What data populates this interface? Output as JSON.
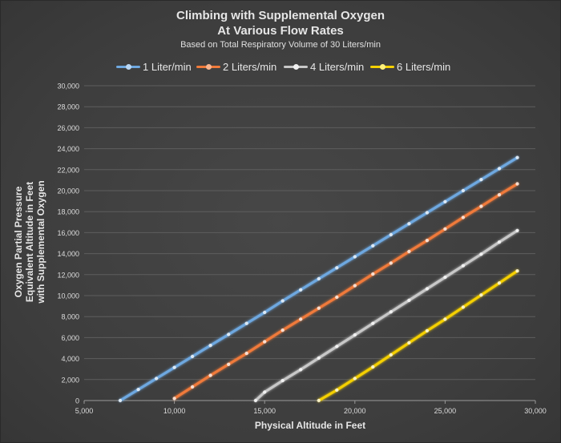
{
  "chart_data": {
    "type": "line",
    "title": "Climbing with Supplemental Oxygen",
    "title_line2": "At Various Flow Rates",
    "subtitle": "Based on Total Respiratory Volume of 30 Liters/min",
    "xlabel": "Physical Altitude in Feet",
    "ylabel_lines": [
      "Oxygen Partial Pressure",
      "Equivalent Altitude  in Feet",
      "with Supplemental Oxygen"
    ],
    "xlim": [
      5000,
      30000
    ],
    "ylim": [
      0,
      30000
    ],
    "x_ticks": [
      5000,
      10000,
      15000,
      20000,
      25000,
      30000
    ],
    "x_tick_labels": [
      "5,000",
      "10,000",
      "15,000",
      "20,000",
      "25,000",
      "30,000"
    ],
    "y_ticks": [
      0,
      2000,
      4000,
      6000,
      8000,
      10000,
      12000,
      14000,
      16000,
      18000,
      20000,
      22000,
      24000,
      26000,
      28000,
      30000
    ],
    "y_tick_labels": [
      "0",
      "2,000",
      "4,000",
      "6,000",
      "8,000",
      "10,000",
      "12,000",
      "14,000",
      "16,000",
      "18,000",
      "20,000",
      "22,000",
      "24,000",
      "26,000",
      "28,000",
      "30,000"
    ],
    "grid": "horizontal",
    "legend_position": "top",
    "series": [
      {
        "name": "1 Liter/min",
        "color": "#6ea8e0",
        "x": [
          7000,
          8000,
          9000,
          10000,
          11000,
          12000,
          13000,
          14000,
          15000,
          16000,
          17000,
          18000,
          19000,
          20000,
          21000,
          22000,
          23000,
          24000,
          25000,
          26000,
          27000,
          28000,
          29000
        ],
        "y": [
          0,
          1050,
          2100,
          3150,
          4200,
          5250,
          6300,
          7350,
          8400,
          9500,
          10550,
          11600,
          12650,
          13700,
          14750,
          15800,
          16850,
          17900,
          18950,
          20000,
          21050,
          22100,
          23150
        ]
      },
      {
        "name": "2 Liters/min",
        "color": "#f07a3a",
        "x": [
          10000,
          11000,
          12000,
          13000,
          14000,
          15000,
          16000,
          17000,
          18000,
          19000,
          20000,
          21000,
          22000,
          23000,
          24000,
          25000,
          26000,
          27000,
          28000,
          29000
        ],
        "y": [
          200,
          1300,
          2400,
          3450,
          4500,
          5600,
          6700,
          7750,
          8800,
          9850,
          10950,
          12050,
          13100,
          14200,
          15250,
          16350,
          17450,
          18500,
          19600,
          20650
        ]
      },
      {
        "name": "4 Liters/min",
        "color": "#c8c8c8",
        "x": [
          14500,
          15000,
          16000,
          17000,
          18000,
          19000,
          20000,
          21000,
          22000,
          23000,
          24000,
          25000,
          26000,
          27000,
          28000,
          29000
        ],
        "y": [
          0,
          800,
          1900,
          2950,
          4050,
          5150,
          6250,
          7350,
          8450,
          9550,
          10650,
          11750,
          12850,
          13950,
          15100,
          16200
        ]
      },
      {
        "name": "6 Liters/min",
        "color": "#f5d000",
        "x": [
          18000,
          19000,
          20000,
          21000,
          22000,
          23000,
          24000,
          25000,
          26000,
          27000,
          28000,
          29000
        ],
        "y": [
          0,
          1000,
          2100,
          3200,
          4350,
          5500,
          6650,
          7750,
          8900,
          10050,
          11200,
          12350
        ]
      }
    ]
  }
}
